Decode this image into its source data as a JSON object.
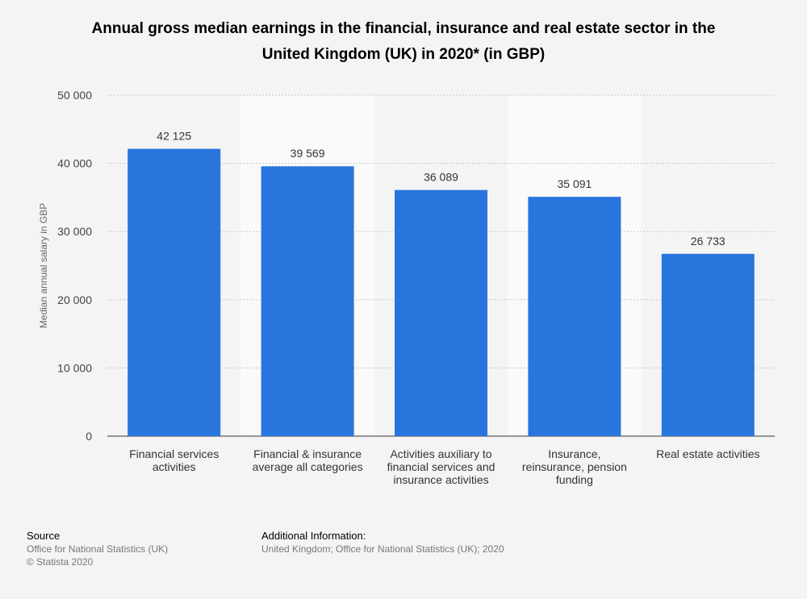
{
  "title_line1": "Annual gross median earnings in the financial, insurance and real estate sector in the",
  "title_line2": "United Kingdom (UK) in 2020* (in GBP)",
  "chart_data": {
    "type": "bar",
    "categories": [
      [
        "Financial services",
        "activities"
      ],
      [
        "Financial & insurance",
        "average all categories"
      ],
      [
        "Activities auxiliary to",
        "financial services and",
        "insurance activities"
      ],
      [
        "Insurance,",
        "reinsurance, pension",
        "funding"
      ],
      [
        "Real estate activities"
      ]
    ],
    "values": [
      42125,
      39569,
      36089,
      35091,
      26733
    ],
    "value_labels": [
      "42 125",
      "39 569",
      "36 089",
      "35 091",
      "26 733"
    ],
    "ylabel": "Median annual salary in GBP",
    "ylim": [
      0,
      50000
    ],
    "yticks": [
      0,
      10000,
      20000,
      30000,
      40000,
      50000
    ],
    "ytick_labels": [
      "0",
      "10 000",
      "20 000",
      "30 000",
      "40 000",
      "50 000"
    ],
    "grid": true,
    "bar_color": "#2876dd"
  },
  "footer": {
    "source_head": "Source",
    "source_line1": "Office for National Statistics (UK)",
    "source_line2": "© Statista 2020",
    "info_head": "Additional Information:",
    "info_line1": "United Kingdom; Office for National Statistics (UK); 2020"
  }
}
